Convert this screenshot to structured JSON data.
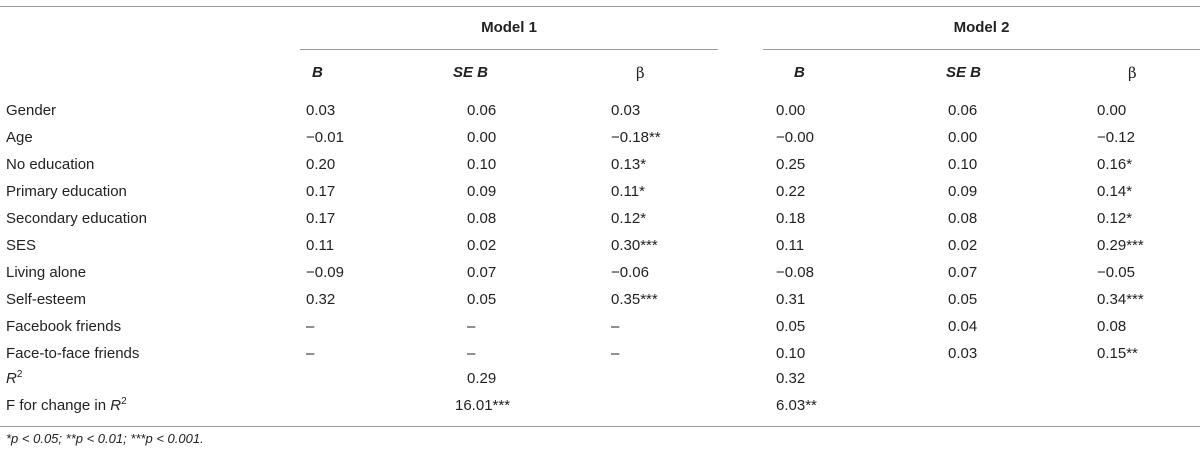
{
  "models": [
    {
      "title": "Model 1"
    },
    {
      "title": "Model 2"
    }
  ],
  "columns": {
    "b": "B",
    "se_b": "SE B",
    "beta": "β"
  },
  "rows": [
    {
      "label": "Gender",
      "m1": [
        "0.03",
        "0.06",
        "0.03"
      ],
      "m2": [
        "0.00",
        "0.06",
        "0.00"
      ]
    },
    {
      "label": "Age",
      "m1": [
        "−0.01",
        "0.00",
        "−0.18**"
      ],
      "m2": [
        "−0.00",
        "0.00",
        "−0.12"
      ]
    },
    {
      "label": "No education",
      "m1": [
        "0.20",
        "0.10",
        "0.13*"
      ],
      "m2": [
        "0.25",
        "0.10",
        "0.16*"
      ]
    },
    {
      "label": "Primary education",
      "m1": [
        "0.17",
        "0.09",
        "0.11*"
      ],
      "m2": [
        "0.22",
        "0.09",
        "0.14*"
      ]
    },
    {
      "label": "Secondary education",
      "m1": [
        "0.17",
        "0.08",
        "0.12*"
      ],
      "m2": [
        "0.18",
        "0.08",
        "0.12*"
      ]
    },
    {
      "label": "SES",
      "m1": [
        "0.11",
        "0.02",
        "0.30***"
      ],
      "m2": [
        "0.11",
        "0.02",
        "0.29***"
      ]
    },
    {
      "label": "Living alone",
      "m1": [
        "−0.09",
        "0.07",
        "−0.06"
      ],
      "m2": [
        "−0.08",
        "0.07",
        "−0.05"
      ]
    },
    {
      "label": "Self-esteem",
      "m1": [
        "0.32",
        "0.05",
        "0.35***"
      ],
      "m2": [
        "0.31",
        "0.05",
        "0.34***"
      ]
    },
    {
      "label": "Facebook friends",
      "m1": [
        "–",
        "–",
        "–"
      ],
      "m2": [
        "0.05",
        "0.04",
        "0.08"
      ]
    },
    {
      "label": "Face-to-face friends",
      "m1": [
        "–",
        "–",
        "–"
      ],
      "m2": [
        "0.10",
        "0.03",
        "0.15**"
      ]
    }
  ],
  "r2_row": {
    "label_base": "R",
    "label_sup": "2",
    "m1": "0.29",
    "m2": "0.32"
  },
  "fchange_row": {
    "label_prefix": "F for change in ",
    "label_base": "R",
    "label_sup": "2",
    "m1": "16.01***",
    "m2": "6.03**"
  },
  "footnote": "*p < 0.05; **p < 0.01; ***p < 0.001."
}
